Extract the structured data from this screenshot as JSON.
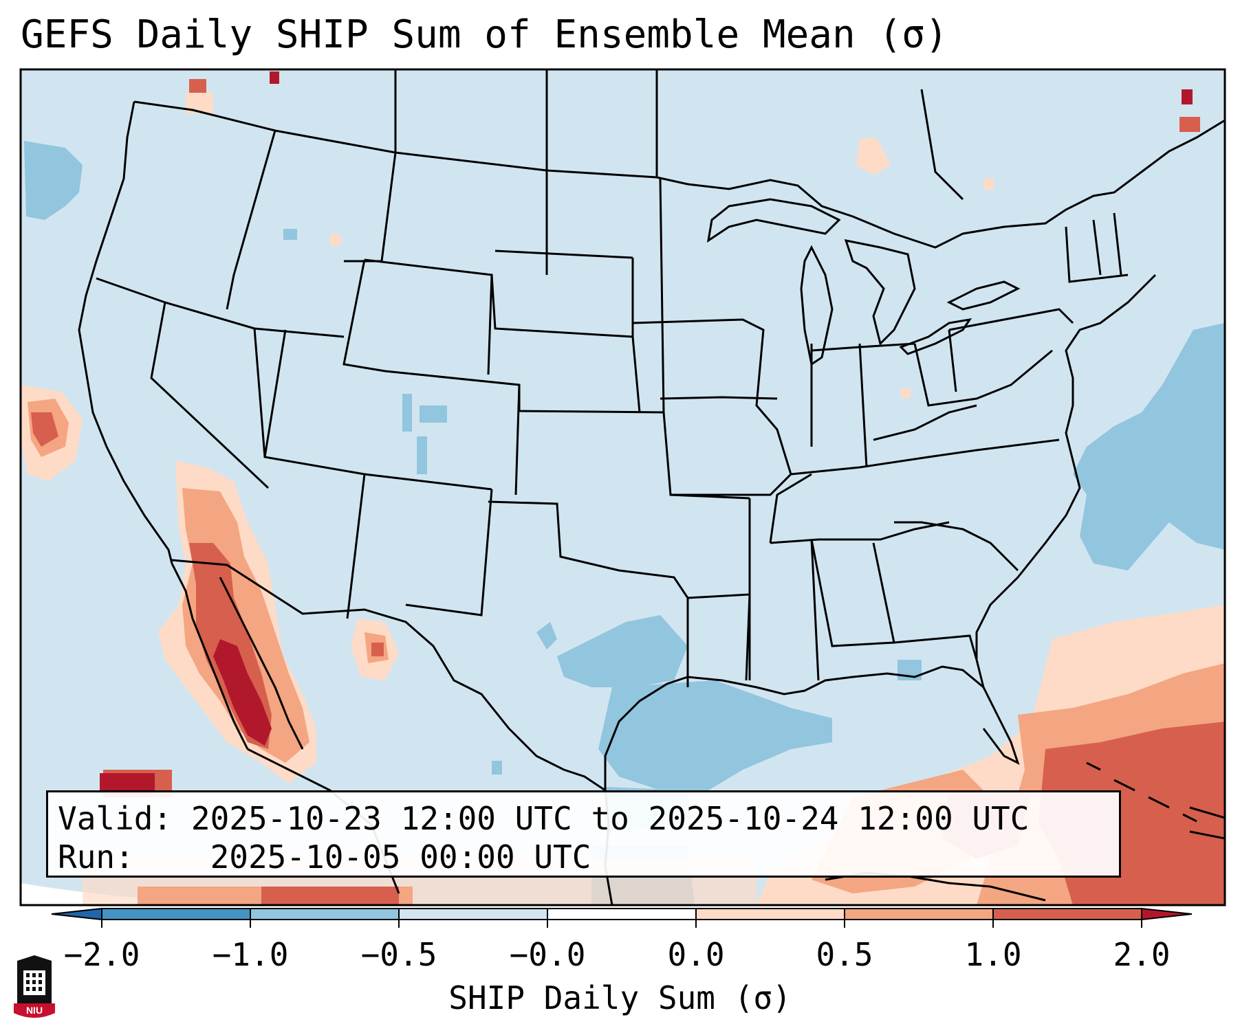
{
  "title": "GEFS Daily SHIP Sum of Ensemble Mean (σ)",
  "info": {
    "valid_label": "Valid:",
    "valid_value": "2025-10-23 12:00 UTC to 2025-10-24 12:00 UTC",
    "run_label": "Run:",
    "run_value": "2025-10-05 00:00 UTC"
  },
  "colorbar": {
    "label": "SHIP Daily Sum (σ)",
    "ticks": [
      "−2.0",
      "−1.0",
      "−0.5",
      "−0.0",
      "0.0",
      "0.5",
      "1.0",
      "2.0"
    ],
    "colors": [
      "#4393c3",
      "#92c5de",
      "#d1e5f0",
      "#ffffff",
      "#fddbc7",
      "#f4a582",
      "#d6604d"
    ],
    "extend_low": "#2166ac",
    "extend_high": "#b2182b"
  },
  "logo_text": "NIU"
}
